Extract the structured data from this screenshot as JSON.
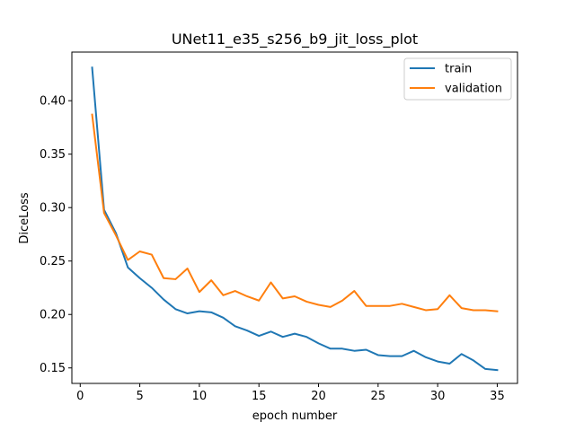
{
  "chart_data": {
    "type": "line",
    "title": "UNet11_e35_s256_b9_jit_loss_plot",
    "xlabel": "epoch number",
    "ylabel": "DiceLoss",
    "xlim": [
      -0.7,
      36.7
    ],
    "ylim": [
      0.1355,
      0.4455
    ],
    "xticks": [
      0,
      5,
      10,
      15,
      20,
      25,
      30,
      35
    ],
    "yticks": [
      0.15,
      0.2,
      0.25,
      0.3,
      0.35,
      0.4
    ],
    "ytick_labels": [
      "0.15",
      "0.20",
      "0.25",
      "0.30",
      "0.35",
      "0.40"
    ],
    "grid": false,
    "legend_position": "upper right",
    "x": [
      1,
      2,
      3,
      4,
      5,
      6,
      7,
      8,
      9,
      10,
      11,
      12,
      13,
      14,
      15,
      16,
      17,
      18,
      19,
      20,
      21,
      22,
      23,
      24,
      25,
      26,
      27,
      28,
      29,
      30,
      31,
      32,
      33,
      34,
      35
    ],
    "series": [
      {
        "name": "train",
        "color": "#1f77b4",
        "values": [
          0.431,
          0.298,
          0.276,
          0.244,
          0.234,
          0.225,
          0.214,
          0.205,
          0.201,
          0.203,
          0.202,
          0.197,
          0.189,
          0.185,
          0.18,
          0.184,
          0.179,
          0.182,
          0.179,
          0.173,
          0.168,
          0.168,
          0.166,
          0.167,
          0.162,
          0.161,
          0.161,
          0.166,
          0.16,
          0.156,
          0.154,
          0.163,
          0.157,
          0.149,
          0.148
        ]
      },
      {
        "name": "validation",
        "color": "#ff7f0e",
        "values": [
          0.387,
          0.295,
          0.274,
          0.251,
          0.259,
          0.256,
          0.234,
          0.233,
          0.243,
          0.221,
          0.232,
          0.218,
          0.222,
          0.217,
          0.213,
          0.23,
          0.215,
          0.217,
          0.212,
          0.209,
          0.207,
          0.213,
          0.222,
          0.208,
          0.208,
          0.208,
          0.21,
          0.207,
          0.204,
          0.205,
          0.218,
          0.206,
          0.204,
          0.204,
          0.203
        ]
      }
    ]
  }
}
